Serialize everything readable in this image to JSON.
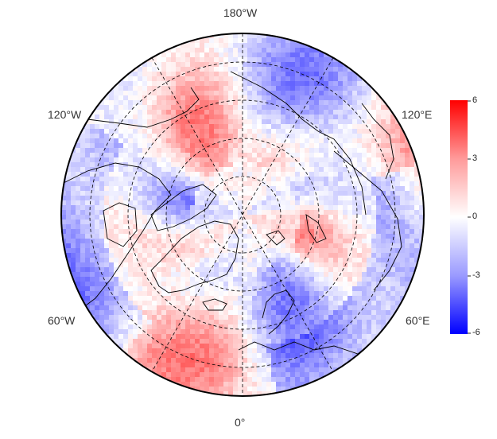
{
  "map": {
    "projection": "north-polar-stereographic",
    "longitude_labels": {
      "top": "180°W",
      "bottom": "0°",
      "upper_left": "120°W",
      "upper_right": "120°E",
      "lower_left": "60°W",
      "lower_right": "60°E"
    },
    "graticule": "dashed",
    "field_style": "gridded anomaly field, diverging blue-white-red"
  },
  "colorbar": {
    "ticks": [
      "6",
      "3",
      "0",
      "-3",
      "-6"
    ],
    "min": -6,
    "max": 6,
    "colors": {
      "low": "#0000ff",
      "mid": "#ffffff",
      "high": "#ff0000"
    }
  }
}
